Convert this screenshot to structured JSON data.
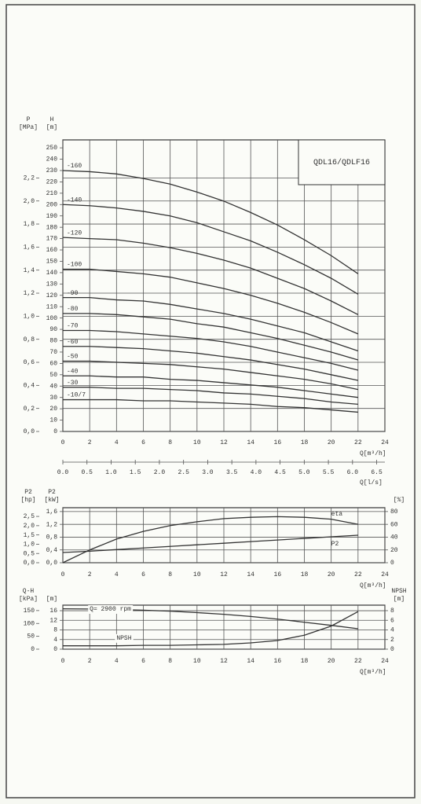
{
  "chart_data": [
    {
      "type": "line",
      "title": "QDL16/QDLF16",
      "x": [
        0,
        2,
        4,
        6,
        8,
        10,
        12,
        14,
        16,
        18,
        20,
        22
      ],
      "xlim": [
        0,
        24
      ],
      "xticks": [
        0,
        2,
        4,
        6,
        8,
        10,
        12,
        14,
        16,
        18,
        20,
        22,
        24
      ],
      "x_label": "Q[m³/h]",
      "x2lim": [
        0,
        6.67
      ],
      "x2ticks": [
        {
          "value": 0,
          "label": "0.0"
        },
        0.5,
        {
          "value": 1,
          "label": "1.0"
        },
        1.5,
        {
          "value": 2,
          "label": "2.0"
        },
        2.5,
        {
          "value": 3,
          "label": "3.0"
        },
        3.5,
        {
          "value": 4,
          "label": "4.0"
        },
        4.5,
        {
          "value": 5,
          "label": "5.0"
        },
        5.5,
        {
          "value": 6,
          "label": "6.0"
        },
        6.5
      ],
      "x2_label": "Q[l/s]",
      "ylim": [
        0,
        257
      ],
      "yticks": [
        0,
        10,
        20,
        30,
        40,
        50,
        60,
        70,
        80,
        90,
        100,
        110,
        120,
        130,
        140,
        150,
        160,
        170,
        180,
        190,
        200,
        210,
        220,
        230,
        240,
        250
      ],
      "y_label": "H",
      "y_unit": "[m]",
      "y2lim": [
        0,
        2.53
      ],
      "y2ticks": [
        {
          "value": 0,
          "label": "0,0"
        },
        {
          "value": 0.2,
          "label": "0,2"
        },
        {
          "value": 0.4,
          "label": "0,4"
        },
        {
          "value": 0.6,
          "label": "0,6"
        },
        {
          "value": 0.8,
          "label": "0,8"
        },
        {
          "value": 1,
          "label": "1,0"
        },
        {
          "value": 1.2,
          "label": "1,2"
        },
        {
          "value": 1.4,
          "label": "1,4"
        },
        {
          "value": 1.6,
          "label": "1,6"
        },
        {
          "value": 1.8,
          "label": "1,8"
        },
        {
          "value": 2,
          "label": "2,0"
        },
        {
          "value": 2.2,
          "label": "2,2"
        }
      ],
      "y2_label": "P",
      "y2_unit": "[MPa]",
      "y2_side": "left",
      "grid": "y2",
      "series": [
        {
          "name": "-160",
          "color": "#333333",
          "values": [
            230,
            229,
            227,
            223,
            218,
            211,
            203,
            193,
            182,
            169,
            155,
            139
          ]
        },
        {
          "name": "-140",
          "color": "#333333",
          "values": [
            200,
            199,
            197,
            194,
            190,
            184,
            176,
            168,
            158,
            147,
            135,
            121
          ]
        },
        {
          "name": "-120",
          "color": "#333333",
          "values": [
            171,
            170,
            169,
            166,
            162,
            157,
            151,
            144,
            135,
            126,
            115,
            103
          ]
        },
        {
          "name": "-100",
          "color": "#333333",
          "values": [
            143,
            143,
            141,
            139,
            136,
            131,
            126,
            120,
            113,
            105,
            96,
            86
          ]
        },
        {
          "name": "-90",
          "color": "#333333",
          "values": [
            118,
            118,
            116,
            115,
            112,
            108,
            104,
            99,
            93,
            87,
            79,
            71
          ]
        },
        {
          "name": "-80",
          "color": "#333333",
          "values": [
            104,
            104,
            103,
            101,
            99,
            95,
            92,
            87,
            82,
            76,
            70,
            63
          ]
        },
        {
          "name": "-70",
          "color": "#333333",
          "values": [
            89,
            89,
            88,
            86,
            84,
            82,
            79,
            75,
            70,
            65,
            60,
            54
          ]
        },
        {
          "name": "-60",
          "color": "#333333",
          "values": [
            75,
            75,
            74,
            73,
            71,
            69,
            66,
            63,
            59,
            55,
            50,
            45
          ]
        },
        {
          "name": "-50",
          "color": "#333333",
          "values": [
            62,
            62,
            61,
            60,
            59,
            57,
            55,
            52,
            49,
            46,
            42,
            37
          ]
        },
        {
          "name": "-40",
          "color": "#333333",
          "values": [
            49,
            49,
            48,
            48,
            46,
            45,
            43,
            41,
            39,
            36,
            33,
            30
          ]
        },
        {
          "name": "-30",
          "color": "#333333",
          "values": [
            39,
            39,
            38,
            38,
            37,
            36,
            34,
            33,
            31,
            29,
            26,
            24
          ]
        },
        {
          "name": "-10/7",
          "color": "#333333",
          "values": [
            28,
            28,
            28,
            27,
            27,
            26,
            25,
            24,
            22,
            21,
            19,
            17
          ]
        }
      ]
    },
    {
      "type": "line",
      "x": [
        0,
        2,
        4,
        6,
        8,
        10,
        12,
        14,
        16,
        18,
        20,
        22
      ],
      "xlim": [
        0,
        24
      ],
      "xticks": [
        0,
        2,
        4,
        6,
        8,
        10,
        12,
        14,
        16,
        18,
        20,
        22,
        24
      ],
      "x_label": "Q[m³/h]",
      "ylim": [
        0,
        1.72
      ],
      "yticks": [
        {
          "value": 0,
          "label": "0,0"
        },
        {
          "value": 0.4,
          "label": "0,4"
        },
        {
          "value": 0.8,
          "label": "0,8"
        },
        {
          "value": 1.2,
          "label": "1,2"
        },
        {
          "value": 1.6,
          "label": "1,6"
        }
      ],
      "y_label": "P2",
      "y_unit": "[kW]",
      "y3lim": [
        0,
        2.97
      ],
      "y3ticks": [
        {
          "value": 0,
          "label": "0,0"
        },
        {
          "value": 0.5,
          "label": "0,5"
        },
        {
          "value": 1,
          "label": "1,0"
        },
        {
          "value": 1.5,
          "label": "1,5"
        },
        {
          "value": 2,
          "label": "2,0"
        },
        {
          "value": 2.5,
          "label": "2,5"
        }
      ],
      "y3_label": "P2",
      "y3_unit": "[hp]",
      "y3_side": "left",
      "y2lim": [
        0,
        86
      ],
      "y2ticks": [
        0,
        20,
        40,
        60,
        80
      ],
      "y2_unit": "[%]",
      "y2_side": "right",
      "grid": "y",
      "series": [
        {
          "name": "eta",
          "color": "#333333",
          "axis": "y2",
          "values": [
            0,
            20,
            37,
            49,
            58,
            64,
            69,
            71,
            72,
            71,
            68,
            60
          ]
        },
        {
          "name": "P2",
          "color": "#333333",
          "axis": "y",
          "values": [
            0.32,
            0.36,
            0.41,
            0.46,
            0.51,
            0.56,
            0.61,
            0.66,
            0.71,
            0.76,
            0.81,
            0.86
          ]
        }
      ]
    },
    {
      "type": "line",
      "x": [
        0,
        2,
        4,
        6,
        8,
        10,
        12,
        14,
        16,
        18,
        20,
        22
      ],
      "xlim": [
        0,
        24
      ],
      "xticks": [
        0,
        2,
        4,
        6,
        8,
        10,
        12,
        14,
        16,
        18,
        20,
        22,
        24
      ],
      "x_label": "Q[m³/h]",
      "ylim": [
        0,
        18.3
      ],
      "yticks": [
        0,
        4,
        8,
        12,
        16
      ],
      "y_unit": "[m]",
      "y3lim": [
        0,
        171
      ],
      "y3ticks": [
        0,
        50,
        100,
        150
      ],
      "y3_label": "Q-H",
      "y3_unit": "[kPa]",
      "y3_side": "left",
      "y2lim": [
        0,
        9.14
      ],
      "y2ticks": [
        0,
        2,
        4,
        6,
        8
      ],
      "y2_label": "NPSH",
      "y2_unit": "[m]",
      "y2_side": "right",
      "grid": "y",
      "series": [
        {
          "name": "Q= 2900 rpm",
          "color": "#333333",
          "axis": "y",
          "values": [
            16.8,
            16.7,
            16.5,
            16.2,
            15.8,
            15.2,
            14.5,
            13.6,
            12.5,
            11.2,
            9.9,
            8.5
          ]
        },
        {
          "name": "NPSH",
          "color": "#333333",
          "axis": "y2",
          "values": [
            0.7,
            0.7,
            0.7,
            0.8,
            0.8,
            0.9,
            1.0,
            1.3,
            1.8,
            2.9,
            4.8,
            7.8
          ]
        }
      ]
    }
  ]
}
